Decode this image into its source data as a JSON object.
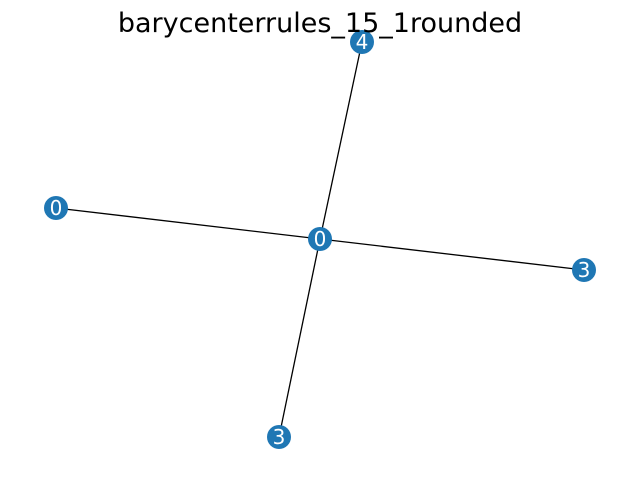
{
  "title": "barycenterrules_15_1rounded",
  "colors": {
    "node_fill": "#1f77b4",
    "edge_stroke": "#000000",
    "label": "#ffffff",
    "background": "#ffffff"
  },
  "graph": {
    "nodes": [
      {
        "id": "center",
        "label": "0"
      },
      {
        "id": "top",
        "label": "4"
      },
      {
        "id": "left",
        "label": "0"
      },
      {
        "id": "right",
        "label": "3"
      },
      {
        "id": "bottom",
        "label": "3"
      }
    ],
    "edges": [
      {
        "source": "center",
        "target": "top"
      },
      {
        "source": "center",
        "target": "left"
      },
      {
        "source": "center",
        "target": "right"
      },
      {
        "source": "center",
        "target": "bottom"
      }
    ]
  }
}
